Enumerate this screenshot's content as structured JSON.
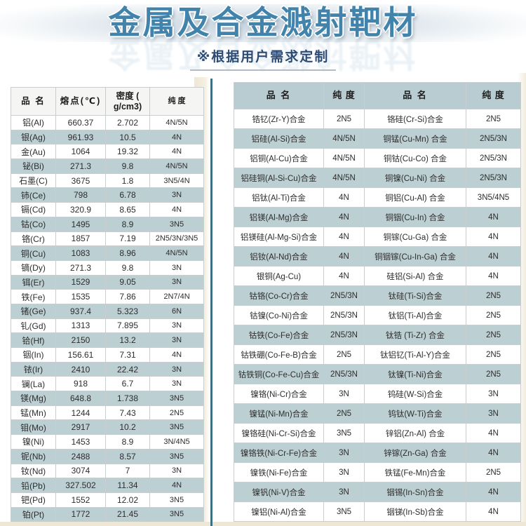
{
  "title": "金属及合金溅射靶材",
  "subtitle": "※根据用户需求定制",
  "colors": {
    "title_blue": "#4283ac",
    "subtitle_navy": "#2d4a74",
    "row_alt_blue": "#bccfd3",
    "right_header_bg": "#b9ccd1",
    "divider_teal": "#3e7084",
    "paper_beige": "#f0e9d8"
  },
  "left_table": {
    "headers": [
      "品 名",
      "熔点(℃)",
      "密度 ( g/cm3)",
      "纯 度"
    ],
    "rows": [
      [
        "铝(Al)",
        "660.37",
        "2.702",
        "4N/5N"
      ],
      [
        "银(Ag)",
        "961.93",
        "10.5",
        "4N"
      ],
      [
        "金(Au)",
        "1064",
        "19.32",
        "4N"
      ],
      [
        "铋(Bi)",
        "271.3",
        "9.8",
        "4N/5N"
      ],
      [
        "石墨(C)",
        "3675",
        "1.8",
        "3N5/4N"
      ],
      [
        "铈(Ce)",
        "798",
        "6.78",
        "3N"
      ],
      [
        "镉(Cd)",
        "320.9",
        "8.65",
        "4N"
      ],
      [
        "钴(Co)",
        "1495",
        "8.9",
        "3N5"
      ],
      [
        "铬(Cr)",
        "1857",
        "7.19",
        "2N5/3N/3N5"
      ],
      [
        "铜(Cu)",
        "1083",
        "8.96",
        "4N/5N"
      ],
      [
        "镝(Dy)",
        "271.3",
        "9.8",
        "3N"
      ],
      [
        "铒(Er)",
        "1529",
        "9.05",
        "3N"
      ],
      [
        "铁(Fe)",
        "1535",
        "7.86",
        "2N7/4N"
      ],
      [
        "锗(Ge)",
        "937.4",
        "5.323",
        "6N"
      ],
      [
        "钆(Gd)",
        "1313",
        "7.895",
        "3N"
      ],
      [
        "铪(Hf)",
        "2150",
        "13.2",
        "3N"
      ],
      [
        "铟(In)",
        "156.61",
        "7.31",
        "4N"
      ],
      [
        "铱(Ir)",
        "2410",
        "22.42",
        "3N"
      ],
      [
        "镧(La)",
        "918",
        "6.7",
        "3N"
      ],
      [
        "镁(Mg)",
        "648.8",
        "1.738",
        "3N5"
      ],
      [
        "锰(Mn)",
        "1244",
        "7.43",
        "2N5"
      ],
      [
        "钼(Mo)",
        "2917",
        "10.2",
        "3N5"
      ],
      [
        "镍(Ni)",
        "1453",
        "8.9",
        "3N/4N5"
      ],
      [
        "铌(Nb)",
        "2488",
        "8.57",
        "3N5"
      ],
      [
        "钕(Nd)",
        "3074",
        "7",
        "3N"
      ],
      [
        "铅(Pb)",
        "327.502",
        "11.34",
        "4N"
      ],
      [
        "钯(Pd)",
        "1552",
        "12.02",
        "3N5"
      ],
      [
        "铂(Pt)",
        "1772",
        "21.45",
        "3N5"
      ]
    ]
  },
  "right_table": {
    "headers": [
      "品 名",
      "纯 度",
      "品 名",
      "纯 度"
    ],
    "rows": [
      [
        "锆钇(Zr-Y)合金",
        "2N5",
        "铬硅(Cr-Si)合金",
        "2N5"
      ],
      [
        "铝硅(Al-Si)合金",
        "4N/5N",
        "铜锰(Cu-Mn) 合金",
        "2N5/3N"
      ],
      [
        "铝铜(Al-Cu)合金",
        "4N/5N",
        "铜钴(Cu-Co) 合金",
        "2N5/3N"
      ],
      [
        "铝硅铜(Al-Si-Cu)合金",
        "4N/5N",
        "铜镍(Cu-Ni) 合金",
        "2N5/3N"
      ],
      [
        "铝钛(Al-Ti)合金",
        "4N",
        "铜铝(Cu-Al) 合金",
        "3N5/4N5"
      ],
      [
        "铝镁(Al-Mg)合金",
        "4N",
        "铜铟(Cu-In) 合金",
        "4N"
      ],
      [
        "铝镁硅(Al-Mg-Si)合金",
        "4N",
        "铜镓(Cu-Ga) 合金",
        "4N"
      ],
      [
        "铝钕(Al-Nd)合金",
        "4N",
        "铜铟镓(Cu-In-Ga) 合金",
        "4N"
      ],
      [
        "银铜(Ag-Cu)",
        "4N",
        "硅铝(Si-Al) 合金",
        "4N"
      ],
      [
        "钴铬(Co-Cr)合金",
        "2N5/3N",
        "钛硅(Ti-Si)合金",
        "2N5"
      ],
      [
        "钴镍(Co-Ni)合金",
        "2N5/3N",
        "钛铝(Ti-Al)合金",
        "2N5"
      ],
      [
        "钴铁(Co-Fe)合金",
        "2N5/3N",
        "钛锆 (Ti-Zr) 合金",
        "2N5"
      ],
      [
        "钴铁硼(Co-Fe-B)合金",
        "2N5",
        "钛铝钇(Ti-Al-Y)合金",
        "2N5"
      ],
      [
        "钴铁铜(Co-Fe-Cu)合金",
        "2N5/3N",
        "钛镍(Ti-Ni)合金",
        "2N5"
      ],
      [
        "镍铬(Ni-Cr)合金",
        "3N",
        "钨硅(W-Si)合金",
        "3N"
      ],
      [
        "镍锰(Ni-Mn)合金",
        "2N5",
        "钨钛(W-Ti)合金",
        "3N"
      ],
      [
        "镍铬硅(Ni-Cr-Si)合金",
        "3N5",
        "锌铝(Zn-Al) 合金",
        "4N"
      ],
      [
        "镍铬铁(Ni-Cr-Fe)合金",
        "3N",
        "锌镓(Zn-Ga) 合金",
        "4N"
      ],
      [
        "镍铁(Ni-Fe)合金",
        "3N",
        "铁锰(Fe-Mn)合金",
        "2N5"
      ],
      [
        "镍钒(Ni-V)合金",
        "3N",
        "铟锡(In-Sn)合金",
        "4N"
      ],
      [
        "镍铝(Ni-Al)合金",
        "3N5",
        "铟锑(In-Sb)合金",
        "4N"
      ]
    ]
  }
}
